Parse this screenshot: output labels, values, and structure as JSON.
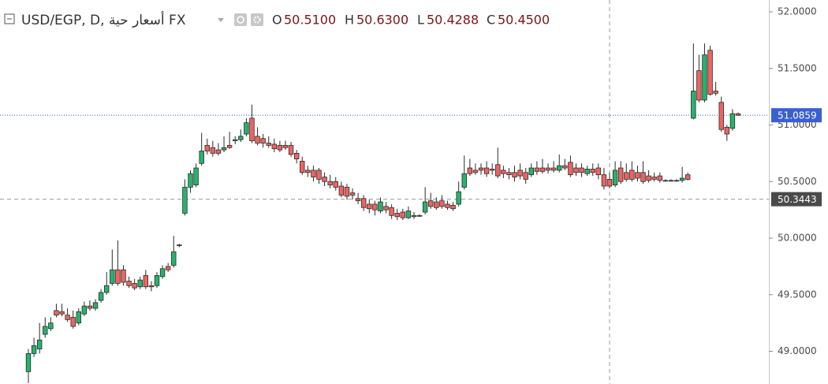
{
  "chart_data": {
    "type": "candlestick",
    "title": "USD/EGP, D, أسعار حية FX",
    "legend_ohlc": [
      {
        "label": "O",
        "value": "50.5100"
      },
      {
        "label": "H",
        "value": "50.6300"
      },
      {
        "label": "L",
        "value": "50.4288"
      },
      {
        "label": "C",
        "value": "50.4500"
      }
    ],
    "up_color": "#26b36d",
    "down_color": "#ef6461",
    "border_color": "#2b2b2b",
    "open": [
      48.82,
      48.98,
      49.02,
      49.15,
      49.2,
      49.36,
      49.35,
      49.32,
      49.3,
      49.25,
      49.33,
      49.4,
      49.38,
      49.45,
      49.52,
      49.6,
      49.72,
      49.72,
      49.62,
      49.6,
      49.57,
      49.67,
      49.58,
      49.58,
      49.66,
      49.75,
      49.76,
      49.94,
      50.22,
      50.45,
      50.47,
      50.66,
      50.82,
      50.8,
      50.78,
      50.78,
      50.82,
      50.86,
      50.87,
      50.92,
      51.06,
      50.9,
      50.88,
      50.84,
      50.83,
      50.82,
      50.82,
      50.82,
      50.75,
      50.68,
      50.6,
      50.6,
      50.6,
      50.54,
      50.5,
      50.5,
      50.46,
      50.45,
      50.4,
      50.35,
      50.35,
      50.3,
      50.3,
      50.24,
      50.28,
      50.27,
      50.22,
      50.23,
      50.18,
      50.2,
      50.2,
      50.23,
      50.33,
      50.32,
      50.33,
      50.3,
      50.29,
      50.3,
      50.45,
      50.62,
      50.6,
      50.62,
      50.62,
      50.61,
      50.65,
      50.6,
      50.58,
      50.58,
      50.6,
      50.58,
      50.56,
      50.62,
      50.62,
      50.62,
      50.62,
      50.6,
      50.64,
      50.67,
      50.62,
      50.62,
      50.57,
      50.61,
      50.62,
      50.56,
      50.52,
      50.47,
      50.62,
      50.58,
      50.6,
      50.58,
      50.58,
      50.55,
      50.54,
      50.55,
      50.51,
      50.51,
      50.51,
      50.51,
      50.56,
      51.06,
      51.48,
      51.22,
      51.66,
      51.3,
      51.2,
      50.98,
      50.97,
      51.1
    ],
    "high": [
      49.02,
      49.12,
      49.25,
      49.3,
      49.3,
      49.42,
      49.42,
      49.38,
      49.36,
      49.38,
      49.44,
      49.45,
      49.46,
      49.55,
      49.7,
      49.9,
      49.98,
      49.76,
      49.66,
      49.64,
      49.66,
      49.72,
      49.62,
      49.7,
      49.76,
      49.78,
      50.02,
      49.95,
      50.52,
      50.6,
      50.66,
      50.93,
      50.88,
      50.86,
      50.84,
      50.9,
      50.94,
      50.9,
      50.96,
      51.06,
      51.18,
      50.98,
      50.92,
      50.9,
      50.88,
      50.86,
      50.86,
      50.85,
      50.78,
      50.72,
      50.64,
      50.64,
      50.62,
      50.58,
      50.56,
      50.54,
      50.5,
      50.48,
      50.44,
      50.4,
      50.38,
      50.34,
      50.33,
      50.36,
      50.32,
      50.3,
      50.26,
      50.26,
      50.28,
      50.23,
      50.21,
      50.45,
      50.4,
      50.36,
      50.38,
      50.33,
      50.32,
      50.5,
      50.73,
      50.7,
      50.66,
      50.66,
      50.68,
      50.66,
      50.8,
      50.64,
      50.62,
      50.64,
      50.66,
      50.62,
      50.66,
      50.68,
      50.7,
      50.66,
      50.68,
      50.74,
      50.7,
      50.73,
      50.66,
      50.66,
      50.64,
      50.66,
      50.66,
      50.62,
      50.58,
      50.68,
      50.68,
      50.66,
      50.68,
      50.64,
      50.68,
      50.6,
      50.58,
      50.58,
      50.52,
      50.52,
      50.52,
      50.63,
      50.58,
      51.72,
      51.62,
      51.72,
      51.7,
      51.38,
      51.25,
      51.0,
      51.14,
      51.11
    ],
    "low": [
      48.72,
      48.95,
      48.98,
      49.12,
      49.18,
      49.3,
      49.31,
      49.26,
      49.2,
      49.23,
      49.31,
      49.36,
      49.36,
      49.43,
      49.5,
      49.58,
      49.58,
      49.58,
      49.56,
      49.54,
      49.55,
      49.55,
      49.53,
      49.56,
      49.64,
      49.7,
      49.74,
      49.92,
      50.2,
      50.4,
      50.45,
      50.64,
      50.74,
      50.72,
      50.73,
      50.76,
      50.79,
      50.83,
      50.85,
      50.9,
      50.84,
      50.82,
      50.8,
      50.8,
      50.76,
      50.76,
      50.78,
      50.72,
      50.66,
      50.56,
      50.54,
      50.5,
      50.48,
      50.46,
      50.44,
      50.42,
      50.36,
      50.34,
      50.34,
      50.3,
      50.24,
      50.22,
      50.2,
      50.22,
      50.22,
      50.17,
      50.16,
      50.16,
      50.17,
      50.17,
      50.19,
      50.21,
      50.26,
      50.25,
      50.26,
      50.25,
      50.24,
      50.28,
      50.43,
      50.55,
      50.56,
      50.56,
      50.54,
      50.56,
      50.53,
      50.53,
      50.52,
      50.5,
      50.52,
      50.48,
      50.54,
      50.56,
      50.57,
      50.57,
      50.58,
      50.58,
      50.6,
      50.54,
      50.55,
      50.54,
      50.55,
      50.55,
      50.52,
      50.43,
      50.44,
      50.45,
      50.48,
      50.5,
      50.5,
      50.5,
      50.48,
      50.49,
      50.5,
      50.49,
      50.5,
      50.5,
      50.5,
      50.49,
      50.51,
      51.05,
      51.2,
      51.2,
      51.26,
      51.26,
      50.94,
      50.86,
      50.95,
      51.08
    ],
    "close": [
      48.98,
      49.05,
      49.1,
      49.22,
      49.25,
      49.32,
      49.33,
      49.28,
      49.22,
      49.35,
      49.4,
      49.38,
      49.43,
      49.52,
      49.58,
      49.72,
      49.6,
      49.61,
      49.58,
      49.56,
      49.63,
      49.57,
      49.57,
      49.67,
      49.73,
      49.72,
      49.88,
      49.94,
      50.45,
      50.57,
      50.62,
      50.77,
      50.77,
      50.75,
      50.75,
      50.8,
      50.8,
      50.87,
      50.9,
      51.02,
      50.86,
      50.84,
      50.84,
      50.82,
      50.79,
      50.78,
      50.8,
      50.74,
      50.7,
      50.58,
      50.58,
      50.54,
      50.52,
      50.5,
      50.47,
      50.45,
      50.38,
      50.37,
      50.38,
      50.33,
      50.27,
      50.26,
      50.25,
      50.32,
      50.25,
      50.2,
      50.19,
      50.18,
      50.24,
      50.19,
      50.2,
      50.32,
      50.28,
      50.27,
      50.28,
      50.27,
      50.26,
      50.41,
      50.57,
      50.57,
      50.58,
      50.6,
      50.57,
      50.6,
      50.55,
      50.57,
      50.56,
      50.54,
      50.55,
      50.52,
      50.62,
      50.59,
      50.59,
      50.6,
      50.6,
      50.64,
      50.62,
      50.56,
      50.58,
      50.58,
      50.61,
      50.58,
      50.56,
      50.46,
      50.46,
      50.6,
      50.5,
      50.52,
      50.52,
      50.53,
      50.5,
      50.51,
      50.52,
      50.51,
      50.51,
      50.51,
      50.51,
      50.53,
      50.52,
      51.3,
      51.22,
      51.62,
      51.27,
      51.28,
      50.96,
      50.92,
      51.1,
      51.0859
    ],
    "ylim": [
      48.711,
      52.1045
    ],
    "yticks": [
      {
        "value": 49,
        "label": "49.0000"
      },
      {
        "value": 49.5,
        "label": "49.5000"
      },
      {
        "value": 50,
        "label": "50.0000"
      },
      {
        "value": 50.5,
        "label": "50.5000"
      },
      {
        "value": 51,
        "label": "51.0000"
      },
      {
        "value": 51.5,
        "label": "51.5000"
      },
      {
        "value": 52,
        "label": "52.0000"
      }
    ],
    "price_line": 51.0859,
    "price_line_color": "#3a5fd0",
    "crosshair_price": 50.3443,
    "crosshair_color": "#4a4a4a",
    "grid": false
  }
}
